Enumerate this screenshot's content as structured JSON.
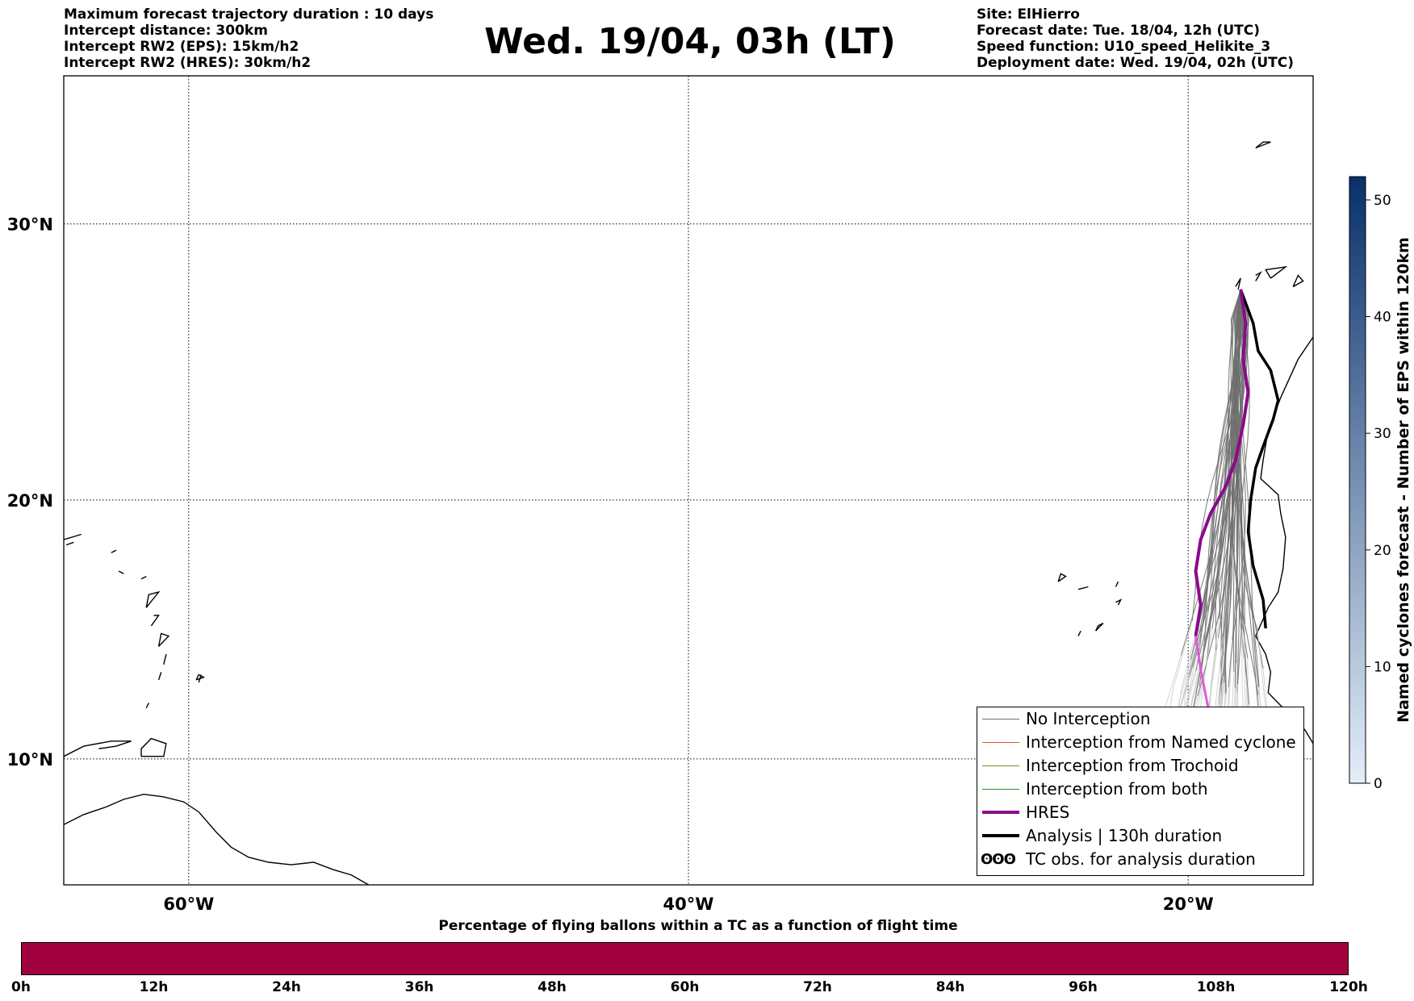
{
  "header": {
    "left_lines": [
      "Maximum forecast trajectory duration : 10 days",
      "Intercept distance: 300km",
      "Intercept RW2 (EPS):  15km/h2",
      "Intercept RW2 (HRES): 30km/h2"
    ],
    "title": "Wed. 19/04, 03h (LT)",
    "right_lines": [
      "Site: ElHierro",
      "Forecast date: Tue. 18/04, 12h (UTC)",
      "Speed function: U10_speed_Helikite_3",
      "Deployment date: Wed. 19/04, 02h (UTC)"
    ]
  },
  "map": {
    "lon_range": [
      -65,
      -15
    ],
    "lat_range": [
      5,
      35
    ],
    "lat_ticks": [
      {
        "value": 30,
        "label": "30°N"
      },
      {
        "value": 20,
        "label": "20°N"
      },
      {
        "value": 10,
        "label": "10°N"
      }
    ],
    "lon_ticks": [
      {
        "value": -60,
        "label": "60°W"
      },
      {
        "value": -40,
        "label": "40°W"
      },
      {
        "value": -20,
        "label": "20°W"
      }
    ],
    "grid": true,
    "launch_site": {
      "lon": -17.9,
      "lat": 27.7
    },
    "colors": {
      "no_interception": "#6e6e6e",
      "named_cyclone": "#e8541e",
      "trochoid": "#8a8a2a",
      "both": "#2a8a2a",
      "hres": "#8b0a8b",
      "hres_late": "#e05ad8",
      "analysis": "#000000",
      "coast": "#000000"
    },
    "hres_track": [
      [
        -17.9,
        27.7
      ],
      [
        -17.7,
        26.5
      ],
      [
        -17.8,
        25.2
      ],
      [
        -17.6,
        24.0
      ],
      [
        -17.8,
        22.8
      ],
      [
        -18.1,
        21.5
      ],
      [
        -18.5,
        20.5
      ],
      [
        -19.1,
        19.5
      ],
      [
        -19.5,
        18.5
      ],
      [
        -19.7,
        17.3
      ],
      [
        -19.5,
        16.0
      ],
      [
        -19.7,
        14.8
      ]
    ],
    "hres_late_track": [
      [
        -19.7,
        14.8
      ],
      [
        -19.5,
        13.5
      ],
      [
        -19.2,
        12.0
      ],
      [
        -19.0,
        10.5
      ]
    ],
    "analysis_track": [
      [
        -17.9,
        27.7
      ],
      [
        -17.4,
        26.5
      ],
      [
        -17.2,
        25.5
      ],
      [
        -16.7,
        24.8
      ],
      [
        -16.4,
        23.7
      ],
      [
        -16.6,
        23.0
      ],
      [
        -17.0,
        22.0
      ],
      [
        -17.3,
        21.2
      ],
      [
        -17.5,
        20.0
      ],
      [
        -17.6,
        18.8
      ],
      [
        -17.4,
        17.5
      ],
      [
        -17.0,
        16.2
      ],
      [
        -16.9,
        15.1
      ]
    ]
  },
  "legend": {
    "items": [
      {
        "label": "No Interception",
        "style": "no_interception"
      },
      {
        "label": "Interception from Named cyclone",
        "style": "named_cyclone"
      },
      {
        "label": "Interception from Trochoid",
        "style": "trochoid"
      },
      {
        "label": "Interception from both",
        "style": "both"
      },
      {
        "label": "HRES",
        "style": "hres"
      },
      {
        "label": "Analysis | 130h duration",
        "style": "analysis"
      },
      {
        "label": "TC obs. for analysis duration",
        "style": "tc_obs",
        "symbol": "ʘʘʘ"
      }
    ]
  },
  "colorbar": {
    "title": "Named cyclones forecast - Number of EPS within 120km",
    "range": [
      0,
      52
    ],
    "ticks": [
      "0",
      "10",
      "20",
      "30",
      "40",
      "50"
    ],
    "color_low": "#e3eef9",
    "color_high": "#08306b"
  },
  "percentage_bar": {
    "title": "Percentage of flying ballons within a TC as a function of flight time",
    "color": "#a1003f",
    "ticks": [
      "0h",
      "12h",
      "24h",
      "36h",
      "48h",
      "60h",
      "72h",
      "84h",
      "96h",
      "108h",
      "120h"
    ]
  }
}
